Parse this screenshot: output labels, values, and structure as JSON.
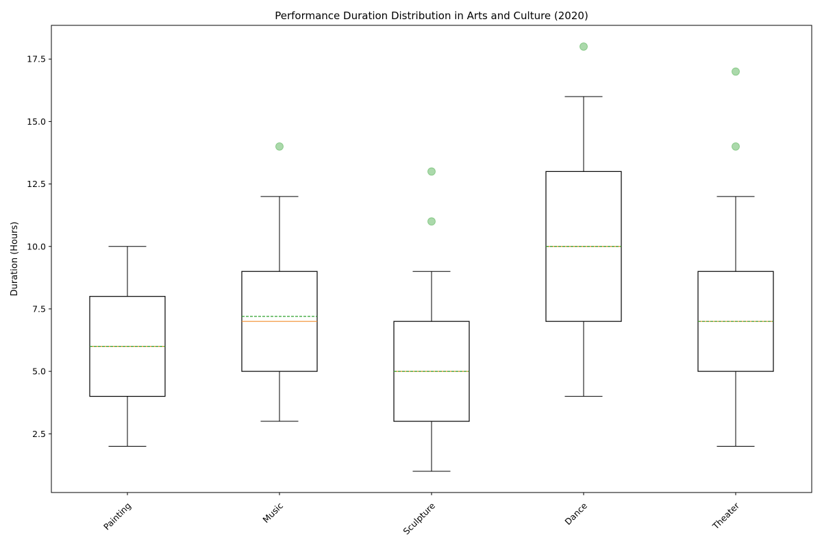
{
  "chart_data": {
    "type": "box",
    "title": "Performance Duration Distribution in Arts and Culture (2020)",
    "xlabel": "",
    "ylabel": "Duration (Hours)",
    "ylim": [
      0.15,
      18.85
    ],
    "yticks": [
      2.5,
      5.0,
      7.5,
      10.0,
      12.5,
      15.0,
      17.5
    ],
    "ytick_labels": [
      "2.5",
      "5.0",
      "7.5",
      "10.0",
      "12.5",
      "15.0",
      "17.5"
    ],
    "xtick_rotation_deg": 45,
    "grid": false,
    "legend": "none",
    "categories": [
      "Painting",
      "Music",
      "Sculpture",
      "Dance",
      "Theater"
    ],
    "boxes": [
      {
        "category": "Painting",
        "whisker_low": 2,
        "q1": 4,
        "median": 6,
        "mean": 6.0,
        "q3": 8,
        "whisker_high": 10,
        "outliers": []
      },
      {
        "category": "Music",
        "whisker_low": 3,
        "q1": 5,
        "median": 7,
        "mean": 7.2,
        "q3": 9,
        "whisker_high": 12,
        "outliers": [
          14
        ]
      },
      {
        "category": "Sculpture",
        "whisker_low": 1,
        "q1": 3,
        "median": 5,
        "mean": 5.0,
        "q3": 7,
        "whisker_high": 9,
        "outliers": [
          11,
          13
        ]
      },
      {
        "category": "Dance",
        "whisker_low": 4,
        "q1": 7,
        "median": 10,
        "mean": 10.0,
        "q3": 13,
        "whisker_high": 16,
        "outliers": [
          18
        ]
      },
      {
        "category": "Theater",
        "whisker_low": 2,
        "q1": 5,
        "median": 7,
        "mean": 7.0,
        "q3": 9,
        "whisker_high": 12,
        "outliers": [
          14,
          17
        ]
      }
    ],
    "colors": {
      "box": "#000000",
      "median": "#f28e2b",
      "mean": "#2ca02c",
      "outlier": "#2ca02c"
    }
  }
}
